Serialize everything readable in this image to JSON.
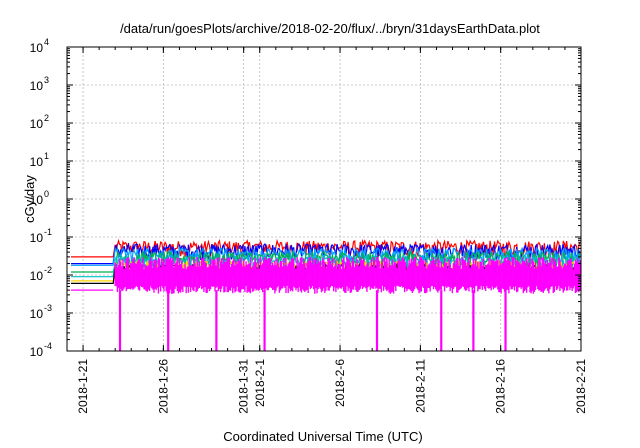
{
  "chart_data": {
    "type": "line",
    "title": "/data/run/goesPlots/archive/2018-02-20/flux/../bryn/31daysEarthData.plot",
    "xlabel": "Coordinated Universal Time (UTC)",
    "ylabel": "cGy/day",
    "y_scale": "log",
    "ylim": [
      0.0001,
      10000
    ],
    "y_ticks": [
      {
        "base": "10",
        "exp": "-4",
        "value": 0.0001
      },
      {
        "base": "10",
        "exp": "-3",
        "value": 0.001
      },
      {
        "base": "10",
        "exp": "-2",
        "value": 0.01
      },
      {
        "base": "10",
        "exp": "-1",
        "value": 0.1
      },
      {
        "base": "10",
        "exp": "0",
        "value": 1
      },
      {
        "base": "10",
        "exp": "1",
        "value": 10
      },
      {
        "base": "10",
        "exp": "2",
        "value": 100
      },
      {
        "base": "10",
        "exp": "3",
        "value": 1000
      },
      {
        "base": "10",
        "exp": "4",
        "value": 10000
      }
    ],
    "xlim": [
      "2018-01-20",
      "2018-02-21"
    ],
    "x_ticks": [
      {
        "label": "2018-1-21",
        "date": "2018-01-21"
      },
      {
        "label": "2018-1-26",
        "date": "2018-01-26"
      },
      {
        "label": "2018-1-31",
        "date": "2018-01-31"
      },
      {
        "label": "2018-2-1",
        "date": "2018-02-01"
      },
      {
        "label": "2018-2-6",
        "date": "2018-02-06"
      },
      {
        "label": "2018-2-11",
        "date": "2018-02-11"
      },
      {
        "label": "2018-2-16",
        "date": "2018-02-16"
      },
      {
        "label": "2018-2-21",
        "date": "2018-02-21"
      }
    ],
    "grid": true,
    "series": [
      {
        "color": "#ff0000",
        "typical": 0.055,
        "start_value": 0.03
      },
      {
        "color": "#0000ff",
        "typical": 0.045,
        "start_value": 0.02
      },
      {
        "color": "#00a0ff",
        "typical": 0.035,
        "start_value": 0.018
      },
      {
        "color": "#00b050",
        "typical": 0.028,
        "start_value": 0.012
      },
      {
        "color": "#00c0c0",
        "typical": 0.022,
        "start_value": 0.009
      },
      {
        "color": "#ffd000",
        "typical": 0.016,
        "start_value": 0.007
      },
      {
        "color": "#000000",
        "typical": 0.013,
        "start_value": 0.006
      },
      {
        "color": "#ff00ff",
        "typical_low": 0.004,
        "typical_high": 0.02,
        "start_value": 0.004
      }
    ],
    "dropouts": [
      "2018-01-23",
      "2018-01-26",
      "2018-01-29",
      "2018-02-01",
      "2018-02-08",
      "2018-02-12",
      "2018-02-14",
      "2018-02-16"
    ],
    "dropout_value": 0.0001
  }
}
